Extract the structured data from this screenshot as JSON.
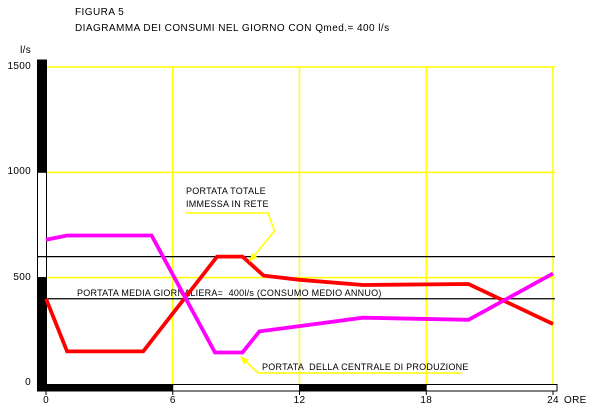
{
  "header": {
    "figure_label": "FIGURA 5",
    "title": "DIAGRAMMA DEI CONSUMI NEL GIORNO CON Qmed.= 400 l/s"
  },
  "axes": {
    "y_unit": "l/s",
    "x_unit": "ORE",
    "x_ticks": [
      {
        "label": "0",
        "value": 0
      },
      {
        "label": "6",
        "value": 6
      },
      {
        "label": "12",
        "value": 12
      },
      {
        "label": "18",
        "value": 18
      },
      {
        "label": "24",
        "value": 24
      }
    ],
    "y_ticks": [
      {
        "label": "0",
        "value": 0
      },
      {
        "label": "500",
        "value": 500
      },
      {
        "label": "1000",
        "value": 1000
      },
      {
        "label": "1500",
        "value": 1500
      }
    ]
  },
  "annotations": {
    "total_line1": "PORTATA TOTALE",
    "total_line2": "IMMESSA IN RETE",
    "average_line": "PORTATA MEDIA GIORNALIERA=  400l/s (CONSUMO MEDIO ANNUO)",
    "production": "PORTATA  DELLA CENTRALE DI PRODUZIONE"
  },
  "colors": {
    "grid": "#ffff00",
    "total_curve": "#ff0000",
    "production_curve": "#ff00ff",
    "axis": "#000000",
    "background": "#ffffff"
  },
  "chart_data": {
    "type": "line",
    "title": "DIAGRAMMA DEI CONSUMI NEL GIORNO CON Qmed.= 400 l/s",
    "xlabel": "ORE",
    "ylabel": "l/s",
    "xlim": [
      0,
      24
    ],
    "ylim": [
      0,
      1500
    ],
    "grid": true,
    "grid_color": "#ffff00",
    "series": [
      {
        "name": "PORTATA TOTALE IMMESSA IN RETE",
        "color": "#ff0000",
        "points": [
          [
            0,
            400
          ],
          [
            1,
            150
          ],
          [
            4.6,
            150
          ],
          [
            8.1,
            600
          ],
          [
            9.3,
            600
          ],
          [
            10.3,
            510
          ],
          [
            12,
            490
          ],
          [
            15,
            465
          ],
          [
            20,
            470
          ],
          [
            24,
            280
          ]
        ]
      },
      {
        "name": "PORTATA DELLA CENTRALE DI PRODUZIONE",
        "color": "#ff00ff",
        "points": [
          [
            0,
            680
          ],
          [
            1,
            700
          ],
          [
            5,
            700
          ],
          [
            8,
            145
          ],
          [
            9.3,
            145
          ],
          [
            10.1,
            245
          ],
          [
            12,
            270
          ],
          [
            15,
            310
          ],
          [
            20,
            300
          ],
          [
            24,
            520
          ]
        ]
      }
    ],
    "reference_lines": [
      {
        "value": 600,
        "color": "#000000",
        "label": ""
      },
      {
        "value": 400,
        "color": "#000000",
        "label": "PORTATA MEDIA GIORNALIERA=  400l/s (CONSUMO MEDIO ANNUO)"
      }
    ]
  }
}
